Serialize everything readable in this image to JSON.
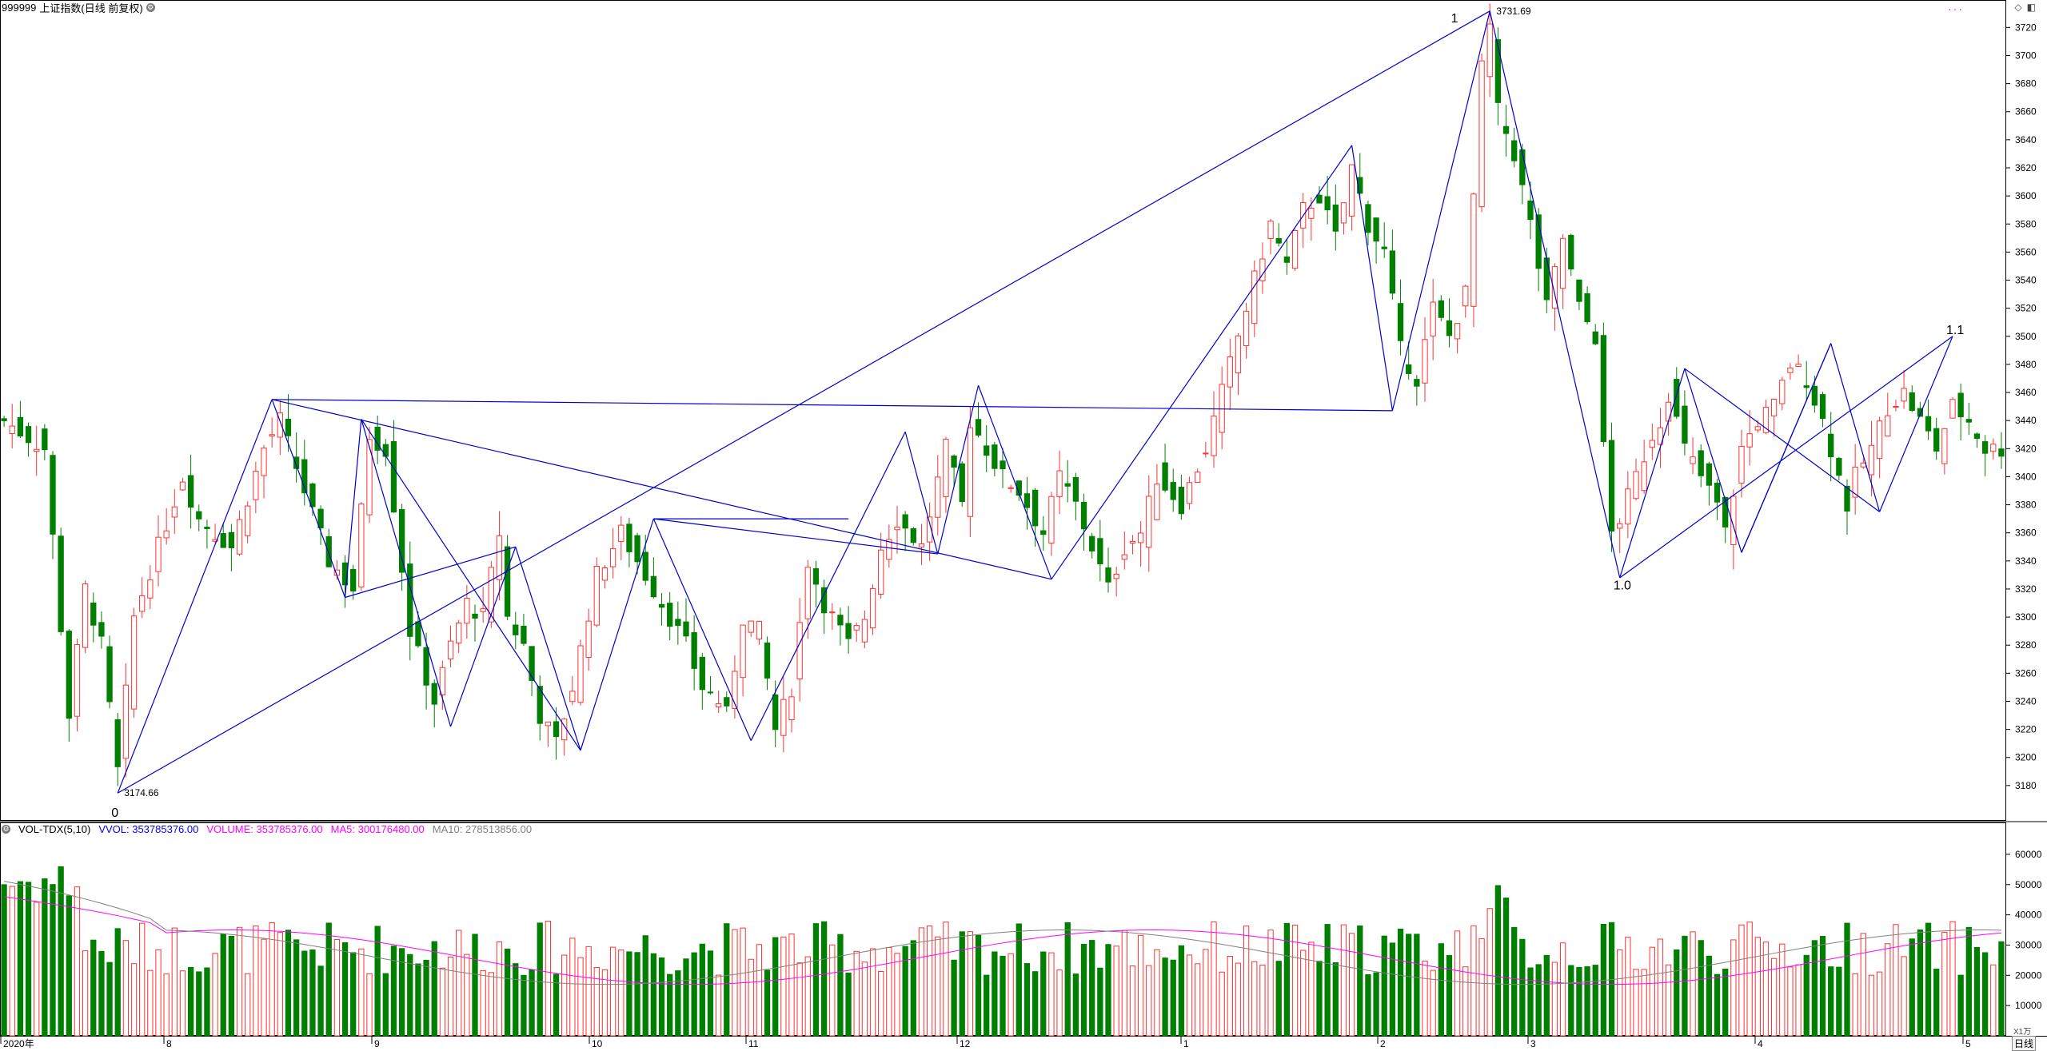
{
  "title": {
    "code": "999999",
    "name": "上证指数(日线 前复权)",
    "settings_icon": "gear-icon"
  },
  "volume_panel": {
    "indicator": "VOL-TDX(5,10)",
    "vvol_label": "VVOL: 353785376.00",
    "volume_label": "VOLUME: 353785376.00",
    "ma5_label": "MA5: 300176480.00",
    "ma10_label": "MA10: 278513856.00",
    "unit": "X1万",
    "colors": {
      "vvol": "#0000ff",
      "volume": "#ff00ff",
      "ma5": "#ff00ff",
      "ma10": "#808080"
    }
  },
  "toolbar": {
    "period_button": "日线",
    "diamond_icon": "diamond-icon",
    "panel_icon": "panel-icon"
  },
  "colors": {
    "up": "#ff3232",
    "down": "#007f00",
    "wave": "#0000cc",
    "axis": "#000000"
  },
  "chart_data": {
    "type": "candlestick",
    "price_axis": {
      "ylim": [
        3160,
        3735
      ],
      "ticks": [
        3180,
        3200,
        3220,
        3240,
        3260,
        3280,
        3300,
        3320,
        3340,
        3360,
        3380,
        3400,
        3420,
        3440,
        3460,
        3480,
        3500,
        3520,
        3540,
        3560,
        3580,
        3600,
        3620,
        3640,
        3660,
        3680,
        3700,
        3720
      ]
    },
    "volume_axis": {
      "ylim": [
        0,
        65000
      ],
      "ticks": [
        10000,
        20000,
        30000,
        40000,
        50000,
        60000
      ]
    },
    "x_axis_labels": [
      "2020年",
      "8",
      "9",
      "10",
      "11",
      "12",
      "1",
      "2",
      "3",
      "4",
      "5"
    ],
    "close_pivots": [
      [
        0,
        3440
      ],
      [
        5,
        3420
      ],
      [
        8,
        3230
      ],
      [
        10,
        3320
      ],
      [
        12,
        3280
      ],
      [
        14,
        3190
      ],
      [
        16,
        3300
      ],
      [
        19,
        3350
      ],
      [
        22,
        3400
      ],
      [
        24,
        3370
      ],
      [
        28,
        3350
      ],
      [
        32,
        3420
      ],
      [
        34,
        3440
      ],
      [
        37,
        3390
      ],
      [
        40,
        3340
      ],
      [
        43,
        3320
      ],
      [
        45,
        3430
      ],
      [
        47,
        3420
      ],
      [
        48,
        3380
      ],
      [
        50,
        3290
      ],
      [
        53,
        3240
      ],
      [
        55,
        3280
      ],
      [
        57,
        3310
      ],
      [
        59,
        3300
      ],
      [
        61,
        3360
      ],
      [
        62,
        3300
      ],
      [
        64,
        3280
      ],
      [
        66,
        3230
      ],
      [
        68,
        3210
      ],
      [
        70,
        3250
      ],
      [
        73,
        3330
      ],
      [
        76,
        3360
      ],
      [
        78,
        3340
      ],
      [
        80,
        3320
      ],
      [
        82,
        3300
      ],
      [
        84,
        3280
      ],
      [
        86,
        3250
      ],
      [
        88,
        3240
      ],
      [
        89,
        3230
      ],
      [
        91,
        3300
      ],
      [
        93,
        3290
      ],
      [
        95,
        3220
      ],
      [
        97,
        3250
      ],
      [
        99,
        3340
      ],
      [
        101,
        3310
      ],
      [
        104,
        3280
      ],
      [
        106,
        3300
      ],
      [
        108,
        3350
      ],
      [
        110,
        3370
      ],
      [
        113,
        3350
      ],
      [
        116,
        3420
      ],
      [
        118,
        3380
      ],
      [
        119,
        3440
      ],
      [
        121,
        3420
      ],
      [
        123,
        3400
      ],
      [
        125,
        3390
      ],
      [
        128,
        3360
      ],
      [
        130,
        3400
      ],
      [
        132,
        3380
      ],
      [
        134,
        3350
      ],
      [
        136,
        3320
      ],
      [
        138,
        3350
      ],
      [
        140,
        3360
      ],
      [
        142,
        3400
      ],
      [
        145,
        3380
      ],
      [
        148,
        3420
      ],
      [
        150,
        3460
      ],
      [
        152,
        3500
      ],
      [
        154,
        3540
      ],
      [
        156,
        3580
      ],
      [
        158,
        3550
      ],
      [
        160,
        3590
      ],
      [
        162,
        3600
      ],
      [
        164,
        3570
      ],
      [
        166,
        3620
      ],
      [
        168,
        3580
      ],
      [
        170,
        3560
      ],
      [
        172,
        3490
      ],
      [
        174,
        3470
      ],
      [
        176,
        3520
      ],
      [
        178,
        3500
      ],
      [
        180,
        3530
      ],
      [
        181,
        3600
      ],
      [
        182,
        3690
      ],
      [
        183,
        3720
      ],
      [
        184,
        3660
      ],
      [
        186,
        3630
      ],
      [
        188,
        3580
      ],
      [
        190,
        3520
      ],
      [
        192,
        3570
      ],
      [
        194,
        3520
      ],
      [
        196,
        3500
      ],
      [
        197,
        3420
      ],
      [
        198,
        3360
      ],
      [
        199,
        3370
      ],
      [
        201,
        3400
      ],
      [
        203,
        3430
      ],
      [
        204,
        3440
      ],
      [
        205,
        3460
      ],
      [
        207,
        3420
      ],
      [
        209,
        3400
      ],
      [
        211,
        3380
      ],
      [
        212,
        3360
      ],
      [
        214,
        3420
      ],
      [
        216,
        3440
      ],
      [
        218,
        3450
      ],
      [
        220,
        3480
      ],
      [
        222,
        3470
      ],
      [
        224,
        3440
      ],
      [
        226,
        3400
      ],
      [
        227,
        3380
      ],
      [
        228,
        3400
      ],
      [
        230,
        3420
      ],
      [
        232,
        3450
      ],
      [
        234,
        3460
      ],
      [
        236,
        3440
      ],
      [
        238,
        3420
      ],
      [
        240,
        3450
      ],
      [
        242,
        3440
      ],
      [
        244,
        3420
      ]
    ],
    "wave_lines": [
      {
        "points": [
          [
            14,
            3174.66
          ],
          [
            33,
            3455
          ]
        ]
      },
      {
        "points": [
          [
            33,
            3455
          ],
          [
            42,
            3314
          ]
        ]
      },
      {
        "points": [
          [
            42,
            3314
          ],
          [
            44,
            3441
          ]
        ]
      },
      {
        "points": [
          [
            44,
            3441
          ],
          [
            55,
            3222
          ]
        ]
      },
      {
        "points": [
          [
            55,
            3222
          ],
          [
            63,
            3350
          ]
        ]
      },
      {
        "points": [
          [
            63,
            3350
          ],
          [
            71,
            3205
          ]
        ]
      },
      {
        "points": [
          [
            71,
            3205
          ],
          [
            80,
            3370
          ]
        ]
      },
      {
        "points": [
          [
            80,
            3370
          ],
          [
            92,
            3212
          ]
        ]
      },
      {
        "points": [
          [
            92,
            3212
          ],
          [
            111,
            3432
          ]
        ]
      },
      {
        "points": [
          [
            111,
            3432
          ],
          [
            115,
            3345
          ]
        ]
      },
      {
        "points": [
          [
            115,
            3345
          ],
          [
            120,
            3465
          ]
        ]
      },
      {
        "points": [
          [
            120,
            3465
          ],
          [
            129,
            3327
          ]
        ]
      },
      {
        "points": [
          [
            129,
            3327
          ],
          [
            166,
            3636
          ]
        ]
      },
      {
        "points": [
          [
            166,
            3636
          ],
          [
            171,
            3447
          ]
        ]
      },
      {
        "points": [
          [
            171,
            3447
          ],
          [
            183,
            3731.69
          ]
        ]
      },
      {
        "points": [
          [
            183,
            3731.69
          ],
          [
            199,
            3328
          ]
        ]
      },
      {
        "points": [
          [
            199,
            3328
          ],
          [
            207,
            3477
          ]
        ]
      },
      {
        "points": [
          [
            207,
            3477
          ],
          [
            214,
            3346
          ]
        ]
      },
      {
        "points": [
          [
            214,
            3346
          ],
          [
            225,
            3495
          ]
        ]
      },
      {
        "points": [
          [
            225,
            3495
          ],
          [
            231,
            3375
          ]
        ]
      },
      {
        "points": [
          [
            231,
            3375
          ],
          [
            240,
            3500
          ]
        ]
      },
      {
        "points": [
          [
            14,
            3174.66
          ],
          [
            183,
            3731.69
          ]
        ]
      },
      {
        "points": [
          [
            33,
            3455
          ],
          [
            171,
            3447
          ]
        ]
      },
      {
        "points": [
          [
            33,
            3455
          ],
          [
            129,
            3327
          ]
        ]
      },
      {
        "points": [
          [
            42,
            3314
          ],
          [
            63,
            3350
          ]
        ]
      },
      {
        "points": [
          [
            44,
            3441
          ],
          [
            71,
            3205
          ]
        ]
      },
      {
        "points": [
          [
            80,
            3370
          ],
          [
            115,
            3345
          ]
        ]
      },
      {
        "points": [
          [
            80,
            3370
          ],
          [
            104,
            3370
          ]
        ]
      },
      {
        "points": [
          [
            199,
            3328
          ],
          [
            240,
            3500
          ]
        ]
      },
      {
        "points": [
          [
            207,
            3477
          ],
          [
            231,
            3375
          ]
        ]
      },
      {
        "points": [
          [
            214,
            3346
          ],
          [
            225,
            3495
          ]
        ]
      }
    ],
    "labels": [
      {
        "text": "3174.66",
        "x": 14,
        "y": 3174.66
      },
      {
        "text": "0",
        "x": 14,
        "y": 3160
      },
      {
        "text": "3731.69",
        "x": 183,
        "y": 3731.69
      },
      {
        "text": "1",
        "x": 179,
        "y": 3726
      },
      {
        "text": "1.0",
        "x": 199,
        "y": 3322
      },
      {
        "text": "1.1",
        "x": 240,
        "y": 3504
      }
    ]
  }
}
